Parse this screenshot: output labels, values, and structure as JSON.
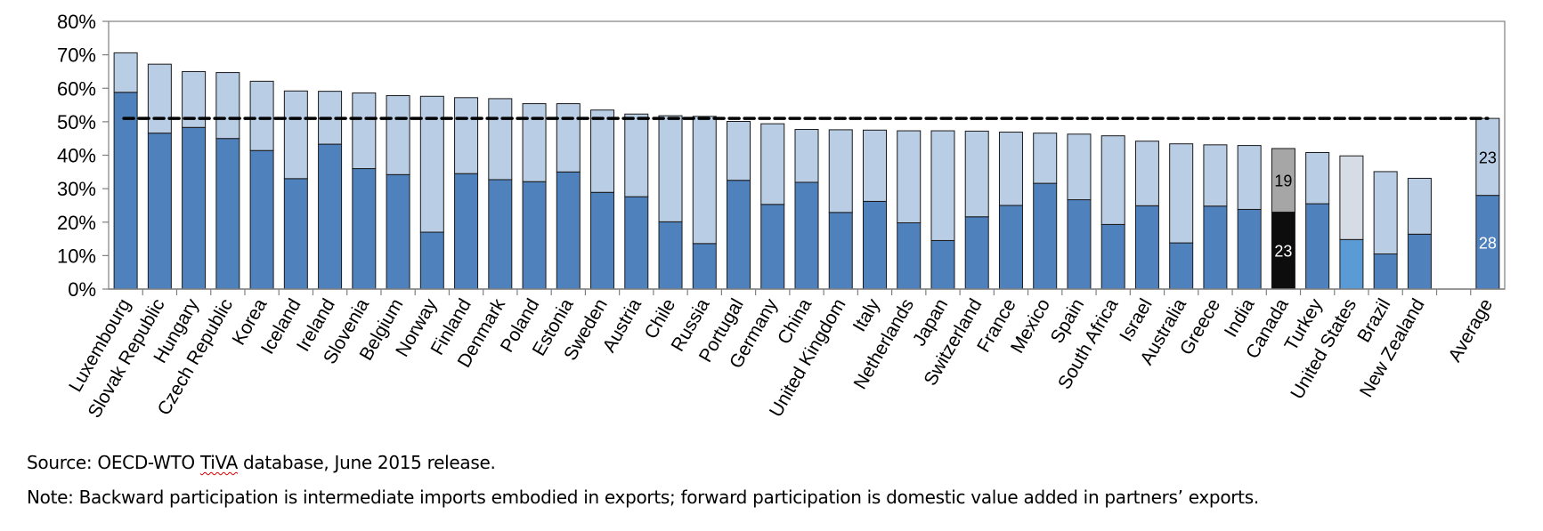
{
  "chart_data": {
    "type": "bar",
    "stacked": true,
    "title": "",
    "xlabel": "",
    "ylabel": "",
    "ylim": [
      0,
      80
    ],
    "yticks": [
      "0%",
      "10%",
      "20%",
      "30%",
      "40%",
      "50%",
      "60%",
      "70%",
      "80%"
    ],
    "ytick_values": [
      0,
      10,
      20,
      30,
      40,
      50,
      60,
      70,
      80
    ],
    "grid": false,
    "legend": "none",
    "categories": [
      "Luxembourg",
      "Slovak Republic",
      "Hungary",
      "Czech Republic",
      "Korea",
      "Iceland",
      "Ireland",
      "Slovenia",
      "Belgium",
      "Norway",
      "Finland",
      "Denmark",
      "Poland",
      "Estonia",
      "Sweden",
      "Austria",
      "Chile",
      "Russia",
      "Portugal",
      "Germany",
      "China",
      "United Kingdom",
      "Italy",
      "Netherlands",
      "Japan",
      "Switzerland",
      "France",
      "Mexico",
      "Spain",
      "South Africa",
      "Israel",
      "Australia",
      "Greece",
      "India",
      "Canada",
      "Turkey",
      "United States",
      "Brazil",
      "New Zealand",
      "",
      "Average"
    ],
    "series": [
      {
        "name": "Backward participation",
        "color": "#4F81BD",
        "values": [
          58.8,
          46.6,
          48.3,
          45.0,
          41.4,
          33.0,
          43.3,
          36.0,
          34.2,
          17.0,
          34.5,
          32.7,
          32.1,
          35.0,
          28.9,
          27.6,
          20.1,
          13.6,
          32.5,
          25.3,
          31.9,
          22.9,
          26.2,
          19.8,
          14.5,
          21.6,
          25.0,
          31.6,
          26.7,
          19.3,
          24.9,
          13.8,
          24.8,
          23.8,
          23.0,
          25.5,
          14.8,
          10.5,
          16.4,
          null,
          28.0
        ]
      },
      {
        "name": "Forward participation",
        "color": "#B9CDE5",
        "values": [
          11.8,
          20.6,
          16.7,
          19.7,
          20.7,
          26.2,
          15.8,
          22.6,
          23.6,
          40.6,
          22.7,
          24.2,
          23.3,
          20.4,
          24.6,
          24.7,
          31.7,
          38.0,
          17.6,
          24.1,
          15.8,
          24.7,
          21.3,
          27.5,
          32.8,
          25.6,
          21.9,
          15.0,
          19.6,
          26.5,
          19.3,
          29.6,
          18.3,
          19.1,
          19.0,
          15.3,
          25.0,
          24.6,
          16.7,
          null,
          23.0
        ]
      }
    ],
    "highlight": {
      "Canada": {
        "backward_color": "#0D0D0D",
        "forward_color": "#A6A6A6"
      },
      "United States": {
        "backward_color": "#5B9BD5",
        "forward_color": "#D6DCE5"
      }
    },
    "data_labels": [
      {
        "category": "Canada",
        "series": 0,
        "text": "23",
        "color": "#FFFFFF"
      },
      {
        "category": "Canada",
        "series": 1,
        "text": "19",
        "color": "#000000"
      },
      {
        "category": "Average",
        "series": 0,
        "text": "28",
        "color": "#FFFFFF"
      },
      {
        "category": "Average",
        "series": 1,
        "text": "23",
        "color": "#000000"
      }
    ],
    "reference_line": {
      "name": "Average total participation",
      "value": 51,
      "style": "dashed",
      "color": "#000000"
    }
  },
  "footnotes": {
    "source_prefix": "Source: OECD-WTO ",
    "source_flagged": "TiVA",
    "source_suffix": " database, June 2015 release.",
    "note": "Note: Backward participation is intermediate imports embodied in exports; forward participation is domestic value added in partners’ exports."
  }
}
